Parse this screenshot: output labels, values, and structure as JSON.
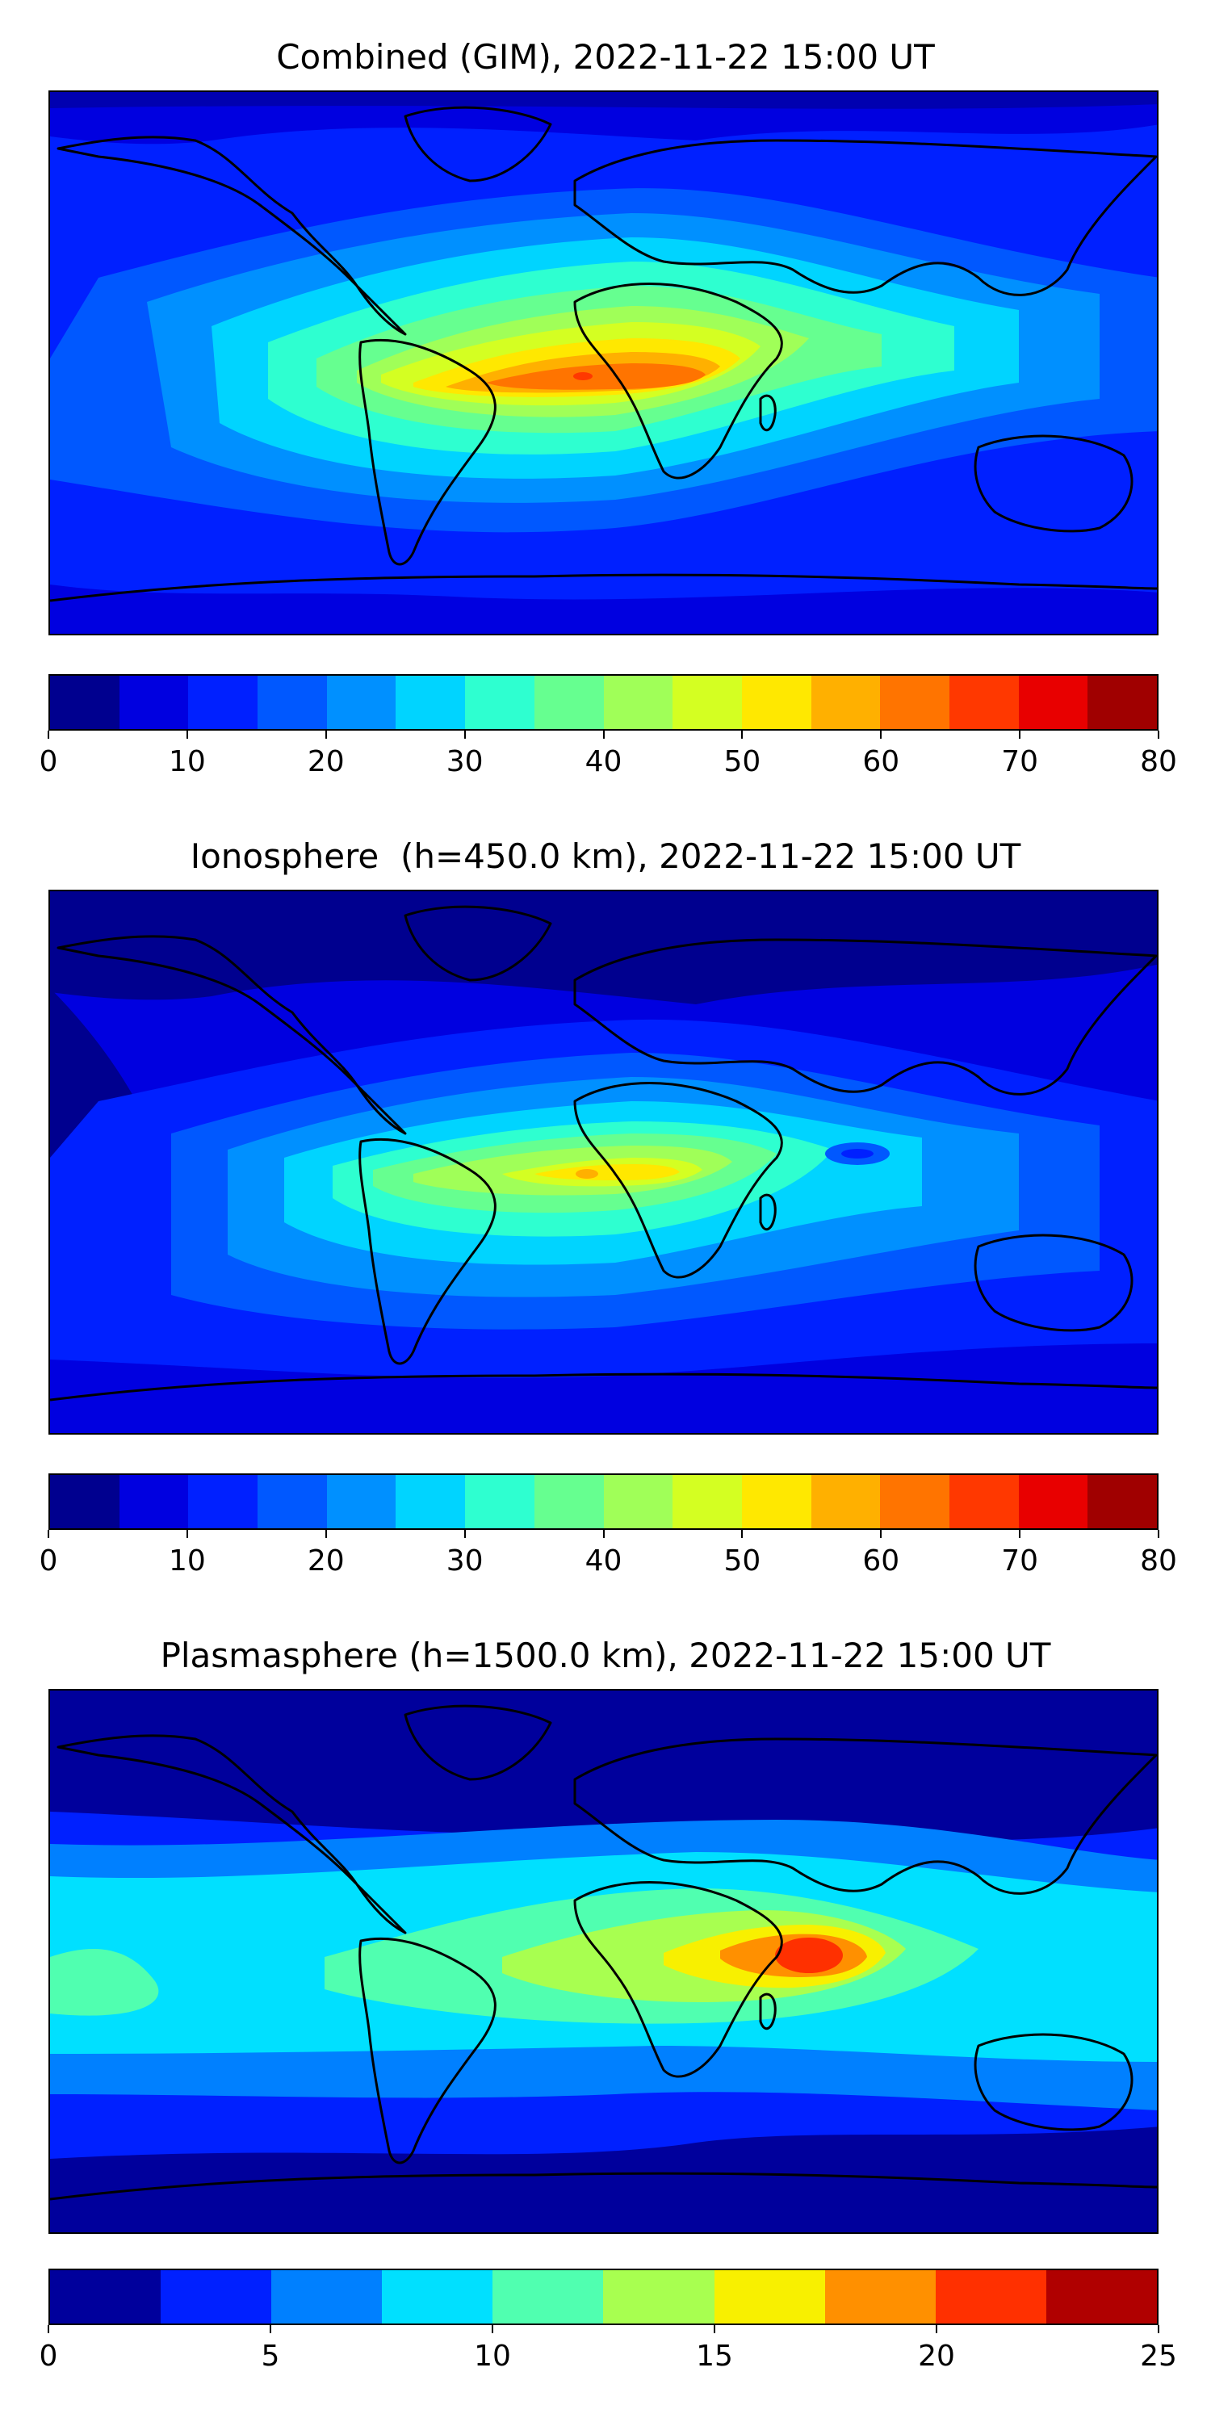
{
  "panels": [
    {
      "title": "Combined (GIM), 2022-11-22 15:00 UT",
      "colorbar": {
        "min": 0,
        "max": 80,
        "ticks": [
          "0",
          "10",
          "20",
          "30",
          "40",
          "50",
          "60",
          "70",
          "80"
        ],
        "colors": [
          "#00008f",
          "#0000e0",
          "#0020ff",
          "#0058ff",
          "#0090ff",
          "#00d4ff",
          "#2effd0",
          "#66ff90",
          "#a0ff58",
          "#d4ff22",
          "#ffe800",
          "#ffb000",
          "#ff7400",
          "#ff3800",
          "#e80000",
          "#a00000"
        ]
      }
    },
    {
      "title": "Ionosphere  (h=450.0 km), 2022-11-22 15:00 UT",
      "colorbar": {
        "min": 0,
        "max": 80,
        "ticks": [
          "0",
          "10",
          "20",
          "30",
          "40",
          "50",
          "60",
          "70",
          "80"
        ],
        "colors": [
          "#00008f",
          "#0000e0",
          "#0020ff",
          "#0058ff",
          "#0090ff",
          "#00d4ff",
          "#2effd0",
          "#66ff90",
          "#a0ff58",
          "#d4ff22",
          "#ffe800",
          "#ffb000",
          "#ff7400",
          "#ff3800",
          "#e80000",
          "#a00000"
        ]
      }
    },
    {
      "title": "Plasmasphere (h=1500.0 km), 2022-11-22 15:00 UT",
      "colorbar": {
        "min": 0,
        "max": 25,
        "ticks": [
          "0",
          "5",
          "10",
          "15",
          "20",
          "25"
        ],
        "colors": [
          "#00009c",
          "#0020ff",
          "#0080ff",
          "#00e0ff",
          "#50ffb0",
          "#a8ff50",
          "#f8f000",
          "#ff9000",
          "#ff3000",
          "#b00000"
        ]
      }
    }
  ]
}
